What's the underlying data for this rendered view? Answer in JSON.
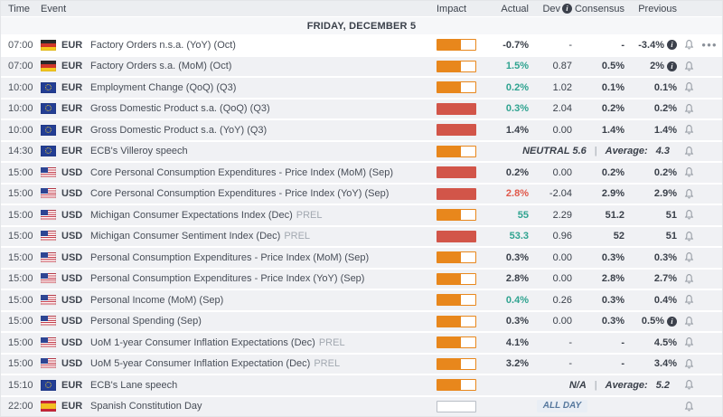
{
  "header": {
    "time": "Time",
    "event": "Event",
    "impact": "Impact",
    "actual": "Actual",
    "dev": "Dev",
    "consensus": "Consensus",
    "previous": "Previous"
  },
  "date_label": "FRIDAY, DECEMBER 5",
  "colors": {
    "impact_medium": "#e8871c",
    "impact_high": "#d25549",
    "actual_better": "#2fa390",
    "actual_worse": "#e0584a",
    "text_dark": "#3a404a",
    "row_bg": "#f0f1f4",
    "badge_text": "#56789e"
  },
  "icons": {
    "dev_info": "info-icon",
    "previous_info": "info-icon",
    "alert": "bell-icon",
    "more": "more-options-icon"
  },
  "rows": [
    {
      "time": "07:00",
      "flag": "de",
      "currency": "EUR",
      "event": "Factory Orders n.s.a. (YoY) (Oct)",
      "impact": "medium",
      "actual": "-0.7%",
      "actual_tone": "dark",
      "dev": "-",
      "consensus": "-",
      "previous": "-3.4%",
      "previous_info": true,
      "hovered": true,
      "more": true
    },
    {
      "time": "07:00",
      "flag": "de",
      "currency": "EUR",
      "event": "Factory Orders s.a. (MoM) (Oct)",
      "impact": "medium",
      "actual": "1.5%",
      "actual_tone": "pos",
      "dev": "0.87",
      "consensus": "0.5%",
      "previous": "2%",
      "previous_info": true
    },
    {
      "time": "10:00",
      "flag": "eu",
      "currency": "EUR",
      "event": "Employment Change (QoQ) (Q3)",
      "impact": "medium",
      "actual": "0.2%",
      "actual_tone": "pos",
      "dev": "1.02",
      "consensus": "0.1%",
      "previous": "0.1%"
    },
    {
      "time": "10:00",
      "flag": "eu",
      "currency": "EUR",
      "event": "Gross Domestic Product s.a. (QoQ) (Q3)",
      "impact": "high",
      "actual": "0.3%",
      "actual_tone": "pos",
      "dev": "2.04",
      "consensus": "0.2%",
      "previous": "0.2%"
    },
    {
      "time": "10:00",
      "flag": "eu",
      "currency": "EUR",
      "event": "Gross Domestic Product s.a. (YoY) (Q3)",
      "impact": "high",
      "actual": "1.4%",
      "actual_tone": "dark",
      "dev": "0.00",
      "consensus": "1.4%",
      "previous": "1.4%"
    },
    {
      "time": "14:30",
      "flag": "eu",
      "currency": "EUR",
      "event": "ECB's Villeroy speech",
      "impact": "medium",
      "type": "speech",
      "speech_label": "NEUTRAL 5.6",
      "separator": "|",
      "avg_label": "Average:",
      "avg_value": "4.3"
    },
    {
      "time": "15:00",
      "flag": "us",
      "currency": "USD",
      "event": "Core Personal Consumption Expenditures - Price Index (MoM) (Sep)",
      "impact": "high",
      "actual": "0.2%",
      "actual_tone": "dark",
      "dev": "0.00",
      "consensus": "0.2%",
      "previous": "0.2%"
    },
    {
      "time": "15:00",
      "flag": "us",
      "currency": "USD",
      "event": "Core Personal Consumption Expenditures - Price Index (YoY) (Sep)",
      "impact": "high",
      "actual": "2.8%",
      "actual_tone": "neg",
      "dev": "-2.04",
      "consensus": "2.9%",
      "previous": "2.9%"
    },
    {
      "time": "15:00",
      "flag": "us",
      "currency": "USD",
      "event": "Michigan Consumer Expectations Index (Dec)",
      "suffix": "PREL",
      "impact": "medium",
      "actual": "55",
      "actual_tone": "pos",
      "dev": "2.29",
      "consensus": "51.2",
      "previous": "51"
    },
    {
      "time": "15:00",
      "flag": "us",
      "currency": "USD",
      "event": "Michigan Consumer Sentiment Index (Dec)",
      "suffix": "PREL",
      "impact": "high",
      "actual": "53.3",
      "actual_tone": "pos",
      "dev": "0.96",
      "consensus": "52",
      "previous": "51"
    },
    {
      "time": "15:00",
      "flag": "us",
      "currency": "USD",
      "event": "Personal Consumption Expenditures - Price Index (MoM) (Sep)",
      "impact": "medium",
      "actual": "0.3%",
      "actual_tone": "dark",
      "dev": "0.00",
      "consensus": "0.3%",
      "previous": "0.3%"
    },
    {
      "time": "15:00",
      "flag": "us",
      "currency": "USD",
      "event": "Personal Consumption Expenditures - Price Index (YoY) (Sep)",
      "impact": "medium",
      "actual": "2.8%",
      "actual_tone": "dark",
      "dev": "0.00",
      "consensus": "2.8%",
      "previous": "2.7%"
    },
    {
      "time": "15:00",
      "flag": "us",
      "currency": "USD",
      "event": "Personal Income (MoM) (Sep)",
      "impact": "medium",
      "actual": "0.4%",
      "actual_tone": "pos",
      "dev": "0.26",
      "consensus": "0.3%",
      "previous": "0.4%"
    },
    {
      "time": "15:00",
      "flag": "us",
      "currency": "USD",
      "event": "Personal Spending (Sep)",
      "impact": "medium",
      "actual": "0.3%",
      "actual_tone": "dark",
      "dev": "0.00",
      "consensus": "0.3%",
      "previous": "0.5%",
      "previous_info": true
    },
    {
      "time": "15:00",
      "flag": "us",
      "currency": "USD",
      "event": "UoM 1-year Consumer Inflation Expectations (Dec)",
      "suffix": "PREL",
      "impact": "medium",
      "actual": "4.1%",
      "actual_tone": "dark",
      "dev": "-",
      "consensus": "-",
      "previous": "4.5%"
    },
    {
      "time": "15:00",
      "flag": "us",
      "currency": "USD",
      "event": "UoM 5-year Consumer Inflation Expectation (Dec)",
      "suffix": "PREL",
      "impact": "medium",
      "actual": "3.2%",
      "actual_tone": "dark",
      "dev": "-",
      "consensus": "-",
      "previous": "3.4%"
    },
    {
      "time": "15:10",
      "flag": "eu",
      "currency": "EUR",
      "event": "ECB's Lane speech",
      "impact": "medium",
      "type": "speech",
      "speech_label": "N/A",
      "separator": "|",
      "avg_label": "Average:",
      "avg_value": "5.2"
    },
    {
      "time": "22:00",
      "flag": "es",
      "currency": "EUR",
      "event": "Spanish Constitution Day",
      "impact": "none",
      "type": "holiday",
      "badge": "ALL DAY"
    }
  ]
}
